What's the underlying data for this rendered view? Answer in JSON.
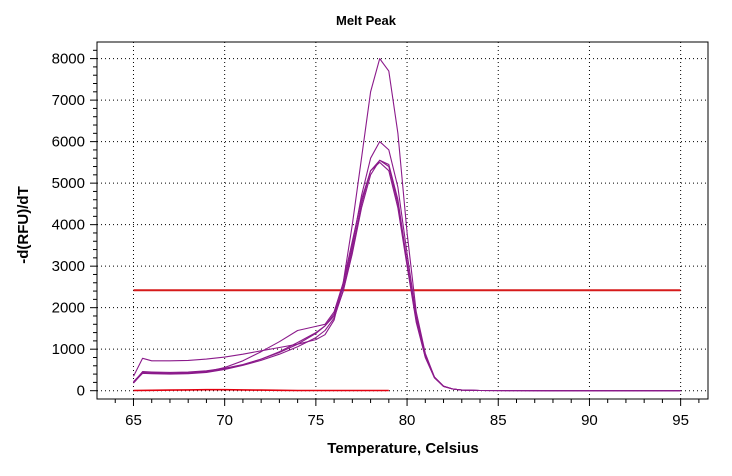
{
  "chart_data": {
    "type": "line",
    "title": "Melt Peak",
    "xlabel": "Temperature, Celsius",
    "ylabel": "-d(RFU)/dT",
    "xlim": [
      63,
      96.5
    ],
    "ylim": [
      -200,
      8400
    ],
    "xticks": [
      65,
      70,
      75,
      80,
      85,
      90,
      95
    ],
    "yticks": [
      0,
      1000,
      2000,
      3000,
      4000,
      5000,
      6000,
      7000,
      8000
    ],
    "grid": true,
    "legend": "none",
    "colors": {
      "sample": "#8b1a8b",
      "threshold": "#d61a1a",
      "negative": "#e3000f"
    },
    "threshold": {
      "value": 2420,
      "x": [
        65,
        95
      ]
    },
    "series": [
      {
        "color": "#8b1a8b",
        "x": [
          65,
          65.5,
          66,
          67,
          68,
          69,
          70,
          71,
          72,
          73,
          74,
          75,
          75.5,
          76,
          76.5,
          77,
          77.5,
          78,
          78.5,
          79,
          79.5,
          80,
          80.5,
          81,
          81.5,
          82,
          82.5,
          83,
          84,
          86,
          88,
          90,
          92,
          95
        ],
        "y": [
          350,
          780,
          720,
          720,
          730,
          760,
          810,
          880,
          960,
          1040,
          1120,
          1230,
          1350,
          1700,
          2600,
          4000,
          5600,
          7200,
          8000,
          7700,
          6200,
          3800,
          1900,
          900,
          330,
          110,
          40,
          15,
          5,
          2,
          0,
          0,
          0,
          0
        ]
      },
      {
        "color": "#8b1a8b",
        "x": [
          65,
          65.5,
          66,
          67,
          68,
          69,
          70,
          71,
          72,
          73,
          74,
          75,
          75.5,
          76,
          76.5,
          77,
          77.5,
          78,
          78.5,
          79,
          79.5,
          80,
          80.5,
          81,
          81.5,
          82,
          82.5,
          83,
          84,
          86,
          88,
          90,
          92,
          95
        ],
        "y": [
          200,
          460,
          450,
          440,
          450,
          480,
          540,
          630,
          760,
          920,
          1120,
          1380,
          1560,
          1850,
          2500,
          3500,
          4700,
          5600,
          6000,
          5800,
          4900,
          3300,
          1800,
          860,
          330,
          110,
          40,
          15,
          5,
          2,
          0,
          0,
          0,
          0
        ]
      },
      {
        "color": "#8b1a8b",
        "x": [
          65,
          65.5,
          66,
          67,
          68,
          69,
          70,
          71,
          72,
          73,
          74,
          75,
          75.5,
          76,
          76.5,
          77,
          77.5,
          78,
          78.5,
          79,
          79.5,
          80,
          80.5,
          81,
          81.5,
          82,
          82.5,
          83,
          84,
          86,
          88,
          90,
          92,
          95
        ],
        "y": [
          180,
          430,
          420,
          410,
          420,
          450,
          520,
          620,
          760,
          940,
          1160,
          1400,
          1560,
          1800,
          2400,
          3300,
          4400,
          5200,
          5550,
          5450,
          4600,
          3100,
          1700,
          820,
          320,
          105,
          40,
          15,
          5,
          2,
          0,
          0,
          0,
          0
        ]
      },
      {
        "color": "#8b1a8b",
        "x": [
          65,
          65.5,
          66,
          67,
          68,
          69,
          70,
          71,
          72,
          73,
          74,
          75,
          75.5,
          76,
          76.5,
          77,
          77.5,
          78,
          78.5,
          79,
          79.5,
          80,
          80.5,
          81,
          81.5,
          82,
          82.5,
          83,
          84,
          86,
          88,
          90,
          92,
          95
        ],
        "y": [
          220,
          440,
          430,
          420,
          430,
          460,
          560,
          720,
          940,
          1180,
          1450,
          1550,
          1600,
          1900,
          2600,
          3600,
          4600,
          5300,
          5500,
          5300,
          4400,
          3000,
          1650,
          800,
          310,
          100,
          40,
          15,
          5,
          2,
          0,
          0,
          0,
          0
        ]
      },
      {
        "color": "#8b1a8b",
        "x": [
          65,
          65.5,
          66,
          67,
          68,
          69,
          70,
          71,
          72,
          73,
          74,
          75,
          75.5,
          76,
          76.5,
          77,
          77.5,
          78,
          78.5,
          79,
          79.5,
          80,
          80.5,
          81,
          81.5,
          82,
          82.5,
          83,
          84,
          86,
          88,
          90,
          92,
          95
        ],
        "y": [
          200,
          420,
          410,
          400,
          410,
          440,
          510,
          610,
          730,
          880,
          1060,
          1280,
          1450,
          1750,
          2400,
          3400,
          4500,
          5300,
          5550,
          5400,
          4500,
          3050,
          1700,
          820,
          320,
          105,
          40,
          15,
          5,
          2,
          0,
          0,
          0,
          0
        ]
      },
      {
        "color": "#e3000f",
        "x": [
          65,
          66,
          67,
          68,
          69,
          70,
          71,
          72,
          73,
          74,
          75,
          76,
          77,
          78,
          79
        ],
        "y": [
          5,
          10,
          15,
          20,
          25,
          25,
          20,
          15,
          10,
          5,
          5,
          5,
          5,
          5,
          5
        ]
      }
    ]
  }
}
